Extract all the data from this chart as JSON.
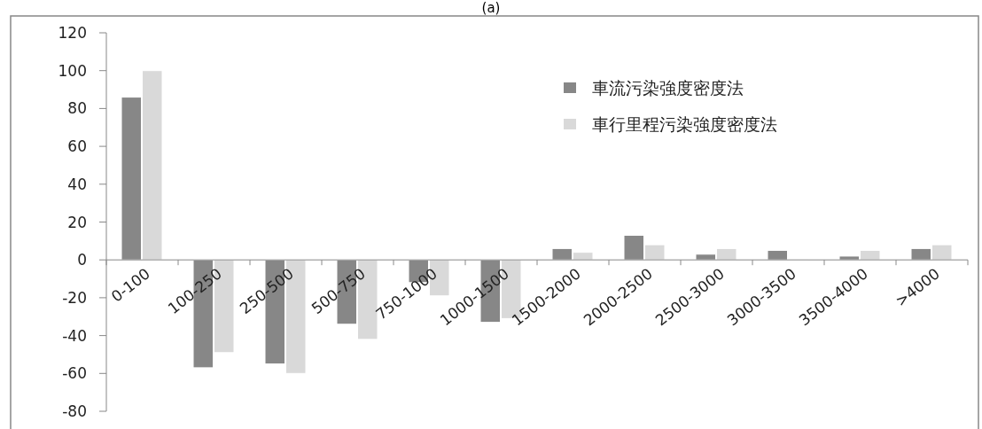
{
  "chart_data": {
    "type": "bar",
    "title": "(a)",
    "categories": [
      "0-100",
      "100-250",
      "250-500",
      "500-750",
      "750-1000",
      "1000-1500",
      "1500-2000",
      "2000-2500",
      "2500-3000",
      "3000-3500",
      "3500-4000",
      ">4000"
    ],
    "series": [
      {
        "name": "車流污染強度密度法",
        "color": "#878787",
        "values": [
          86,
          -57,
          -55,
          -34,
          -12,
          -33,
          6,
          13,
          3,
          5,
          2,
          6
        ]
      },
      {
        "name": "車行里程污染強度密度法",
        "color": "#d9d9d9",
        "values": [
          100,
          -49,
          -60,
          -42,
          -19,
          -31,
          4,
          8,
          6,
          0.5,
          5,
          8
        ]
      }
    ],
    "ylim": [
      -80,
      120
    ],
    "yticks": [
      -80,
      -60,
      -40,
      -20,
      0,
      20,
      40,
      60,
      80,
      100,
      120
    ],
    "grid": false,
    "legend": "top right"
  }
}
